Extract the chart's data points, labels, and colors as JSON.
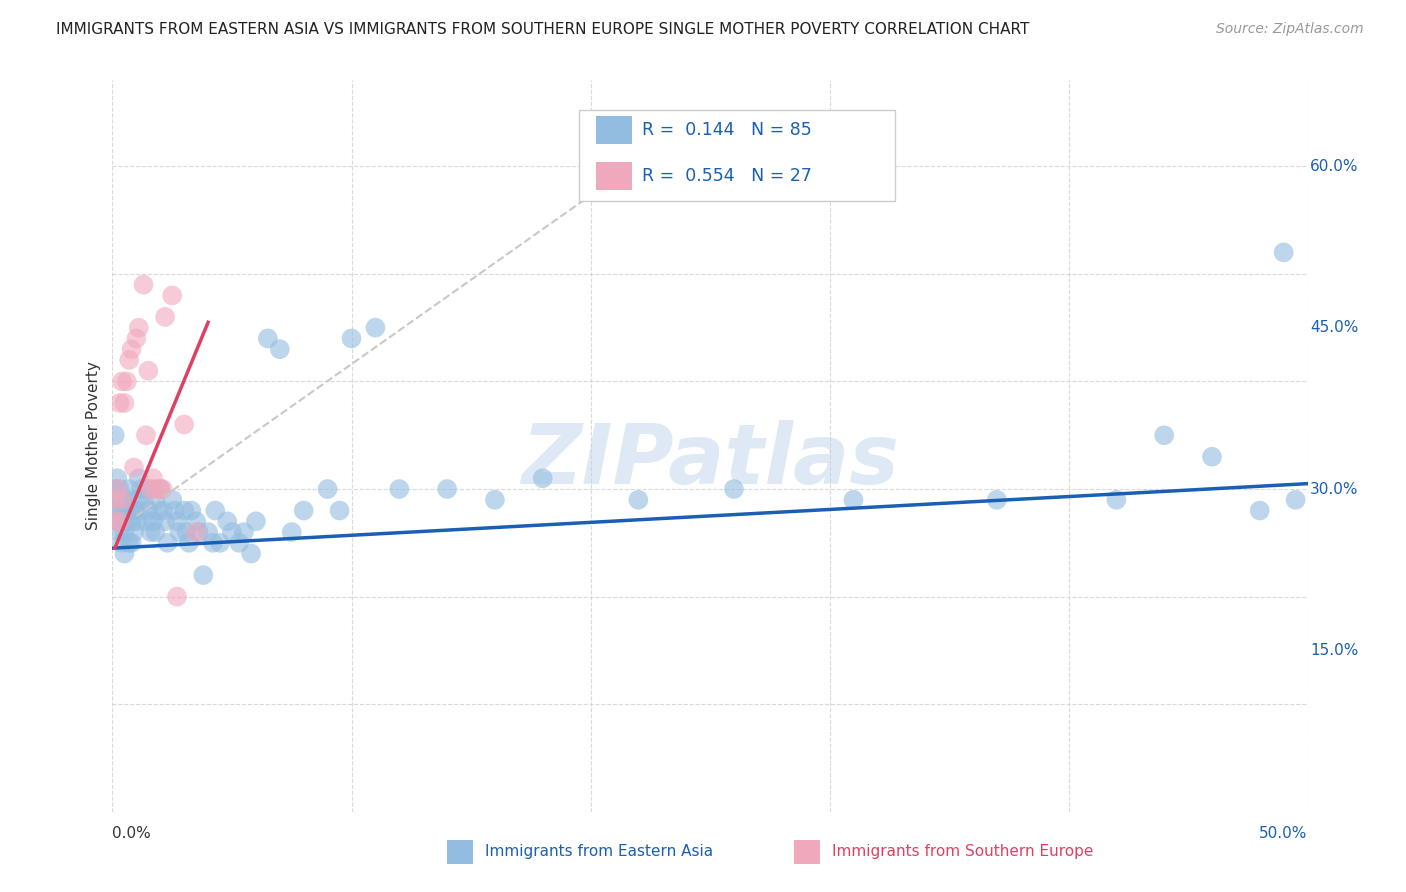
{
  "title": "IMMIGRANTS FROM EASTERN ASIA VS IMMIGRANTS FROM SOUTHERN EUROPE SINGLE MOTHER POVERTY CORRELATION CHART",
  "source": "Source: ZipAtlas.com",
  "ylabel": "Single Mother Poverty",
  "right_yticks": [
    "60.0%",
    "45.0%",
    "30.0%",
    "15.0%"
  ],
  "right_ytick_vals": [
    0.6,
    0.45,
    0.3,
    0.15
  ],
  "xlim": [
    0.0,
    0.5
  ],
  "ylim": [
    0.0,
    0.68
  ],
  "watermark": "ZIPatlas",
  "blue_color": "#92bce0",
  "pink_color": "#f0a8bc",
  "blue_line_color": "#1a5fb4",
  "pink_line_color": "#e04060",
  "dashed_line_color": "#c8c8c8",
  "background_color": "#ffffff",
  "grid_color": "#d0d0d0",
  "legend_color": "#1a5fb4",
  "blue_scatter_x": [
    0.001,
    0.001,
    0.001,
    0.002,
    0.002,
    0.002,
    0.003,
    0.003,
    0.003,
    0.004,
    0.004,
    0.004,
    0.005,
    0.005,
    0.005,
    0.006,
    0.006,
    0.007,
    0.007,
    0.007,
    0.008,
    0.008,
    0.009,
    0.009,
    0.01,
    0.01,
    0.011,
    0.011,
    0.012,
    0.013,
    0.014,
    0.015,
    0.015,
    0.016,
    0.017,
    0.018,
    0.018,
    0.019,
    0.02,
    0.021,
    0.022,
    0.023,
    0.025,
    0.026,
    0.027,
    0.028,
    0.03,
    0.031,
    0.032,
    0.033,
    0.035,
    0.036,
    0.038,
    0.04,
    0.042,
    0.043,
    0.045,
    0.048,
    0.05,
    0.053,
    0.055,
    0.058,
    0.06,
    0.065,
    0.07,
    0.075,
    0.08,
    0.09,
    0.095,
    0.1,
    0.11,
    0.12,
    0.14,
    0.16,
    0.18,
    0.22,
    0.26,
    0.31,
    0.37,
    0.42,
    0.44,
    0.46,
    0.48,
    0.49,
    0.495
  ],
  "blue_scatter_y": [
    0.35,
    0.3,
    0.28,
    0.31,
    0.29,
    0.27,
    0.3,
    0.28,
    0.26,
    0.29,
    0.27,
    0.25,
    0.28,
    0.26,
    0.24,
    0.29,
    0.27,
    0.3,
    0.28,
    0.25,
    0.27,
    0.25,
    0.28,
    0.26,
    0.29,
    0.27,
    0.31,
    0.28,
    0.3,
    0.29,
    0.27,
    0.3,
    0.28,
    0.26,
    0.27,
    0.29,
    0.26,
    0.28,
    0.3,
    0.28,
    0.27,
    0.25,
    0.29,
    0.28,
    0.27,
    0.26,
    0.28,
    0.26,
    0.25,
    0.28,
    0.27,
    0.26,
    0.22,
    0.26,
    0.25,
    0.28,
    0.25,
    0.27,
    0.26,
    0.25,
    0.26,
    0.24,
    0.27,
    0.44,
    0.43,
    0.26,
    0.28,
    0.3,
    0.28,
    0.44,
    0.45,
    0.3,
    0.3,
    0.29,
    0.31,
    0.29,
    0.3,
    0.29,
    0.29,
    0.29,
    0.35,
    0.33,
    0.28,
    0.52,
    0.29
  ],
  "pink_scatter_x": [
    0.001,
    0.001,
    0.002,
    0.003,
    0.003,
    0.004,
    0.004,
    0.005,
    0.006,
    0.007,
    0.008,
    0.009,
    0.01,
    0.011,
    0.013,
    0.014,
    0.015,
    0.016,
    0.017,
    0.018,
    0.02,
    0.021,
    0.022,
    0.025,
    0.027,
    0.03,
    0.035
  ],
  "pink_scatter_y": [
    0.27,
    0.29,
    0.3,
    0.27,
    0.38,
    0.29,
    0.4,
    0.38,
    0.4,
    0.42,
    0.43,
    0.32,
    0.44,
    0.45,
    0.49,
    0.35,
    0.41,
    0.3,
    0.31,
    0.3,
    0.3,
    0.3,
    0.46,
    0.48,
    0.2,
    0.36,
    0.26
  ],
  "blue_line_x": [
    0.0,
    0.5
  ],
  "blue_line_y": [
    0.245,
    0.305
  ],
  "pink_line_x": [
    0.001,
    0.04
  ],
  "pink_line_y": [
    0.245,
    0.455
  ],
  "dash_line_x": [
    0.01,
    0.23
  ],
  "dash_line_y": [
    0.275,
    0.62
  ]
}
